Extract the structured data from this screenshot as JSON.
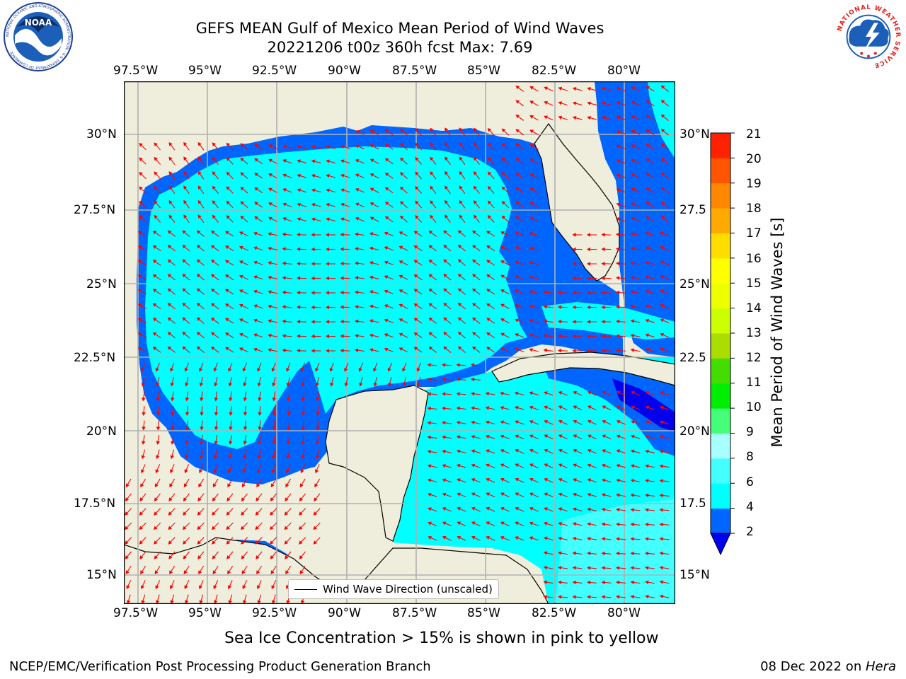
{
  "title": {
    "line1": "GEFS MEAN Gulf of Mexico Mean Period of Wind Waves",
    "line2": "20221206 t00z 360h fcst   Max: 7.69"
  },
  "map": {
    "lon_min": -98.3,
    "lon_max": -78.5,
    "lat_min": 14.0,
    "lat_max": 31.8,
    "lon_ticks": [
      "97.5°W",
      "95°W",
      "92.5°W",
      "90°W",
      "87.5°W",
      "85°W",
      "82.5°W",
      "80°W"
    ],
    "lat_ticks": [
      "15°N",
      "17.5°N",
      "20°N",
      "22.5°N",
      "25°N",
      "27.5°N",
      "30°N"
    ],
    "lat_ticks_right": [
      "15°N",
      "17.5",
      "20°N",
      "22.5",
      "25°N",
      "27.5",
      "30°N"
    ],
    "land_color": "#efeddb",
    "grid_color": "#b0b0b0",
    "arrow_color": "#ff0000"
  },
  "legend": {
    "label": "Wind Wave Direction (unscaled)"
  },
  "colorbar": {
    "label": "Mean Period of Wind Waves [s]",
    "ticks": [
      "2",
      "4",
      "6",
      "8",
      "9",
      "10",
      "11",
      "12",
      "13",
      "14",
      "15",
      "16",
      "17",
      "18",
      "19",
      "20",
      "21"
    ],
    "colors": [
      "#0066ff",
      "#00ffff",
      "#44ffff",
      "#a8ffff",
      "#44ff77",
      "#00ee00",
      "#44dd00",
      "#aadd00",
      "#ccff00",
      "#eeff00",
      "#ffff00",
      "#ffdd00",
      "#ffaa00",
      "#ff8800",
      "#ff5500",
      "#ff2200"
    ],
    "under_color": "#0000ee"
  },
  "footnote": "Sea Ice Concentration > 15% is shown in pink to yellow",
  "footer": {
    "left": "NCEP/EMC/Verification Post Processing Product Generation Branch",
    "right_date": "08 Dec 2022 on ",
    "right_machine": "Hera"
  },
  "logos": {
    "noaa_text": "NOAA",
    "noaa_ring_text": "NATIONAL OCEANIC AND ATMOSPHERIC ADMINISTRATION · U.S. DEPARTMENT OF COMMERCE",
    "nws_ring_text": "NATIONAL WEATHER SERVICE"
  }
}
